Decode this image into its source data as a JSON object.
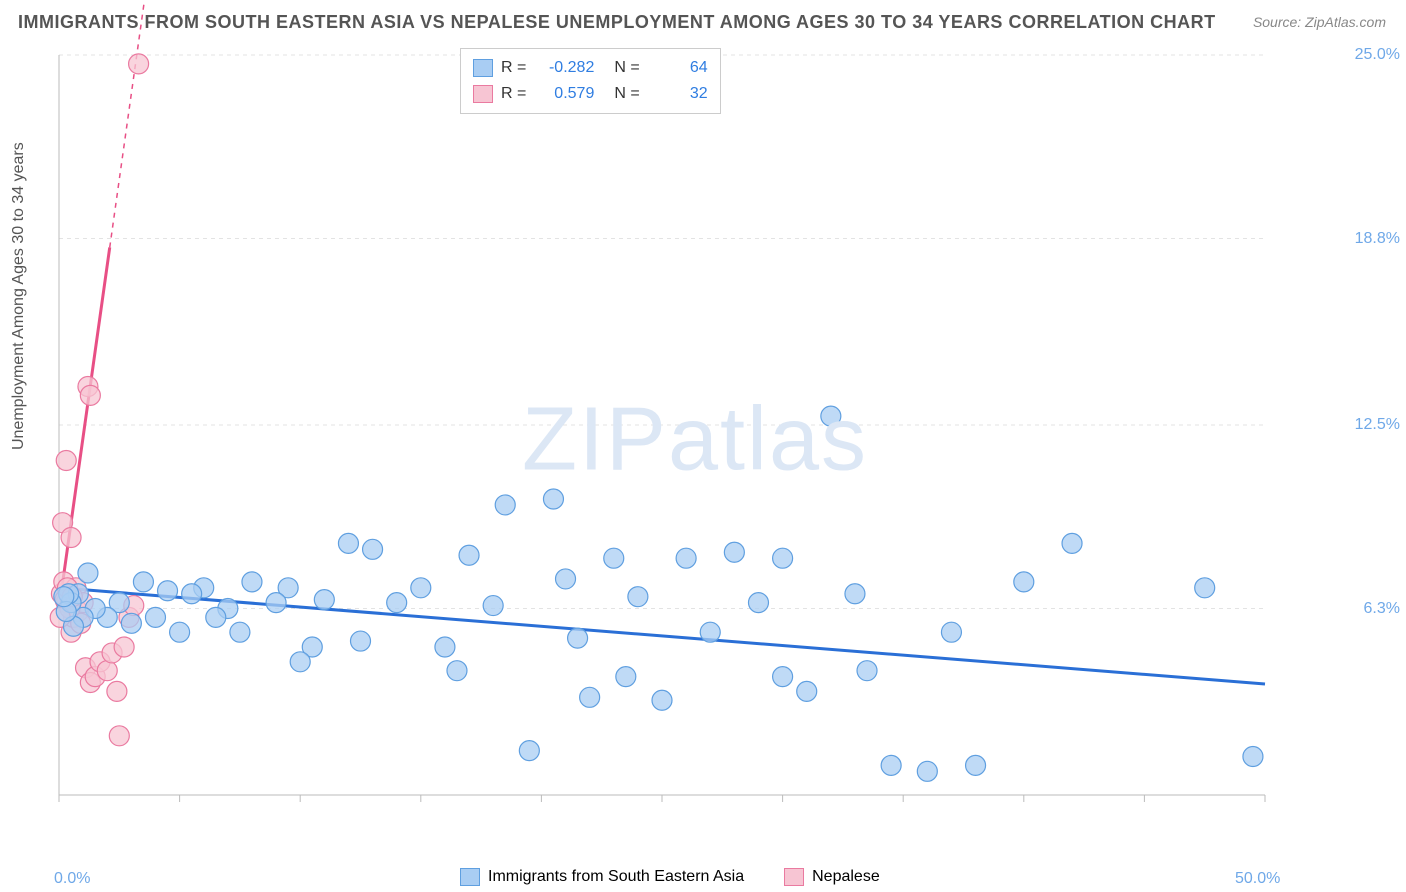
{
  "title": "IMMIGRANTS FROM SOUTH EASTERN ASIA VS NEPALESE UNEMPLOYMENT AMONG AGES 30 TO 34 YEARS CORRELATION CHART",
  "source": "Source: ZipAtlas.com",
  "ylabel": "Unemployment Among Ages 30 to 34 years",
  "watermark_a": "ZIP",
  "watermark_b": "atlas",
  "chart": {
    "type": "scatter-correlation",
    "background_color": "#ffffff",
    "grid_color": "#e3e3e3",
    "axis_tick_color": "#cccccc",
    "x_domain": [
      0,
      50
    ],
    "y_domain": [
      0,
      25
    ],
    "x_tick_label_min": "0.0%",
    "x_tick_label_max": "50.0%",
    "x_minor_ticks": [
      0,
      5,
      10,
      15,
      20,
      25,
      30,
      35,
      40,
      45,
      50
    ],
    "y_ticks": [
      {
        "v": 6.3,
        "label": "6.3%"
      },
      {
        "v": 12.5,
        "label": "12.5%"
      },
      {
        "v": 18.8,
        "label": "18.8%"
      },
      {
        "v": 25.0,
        "label": "25.0%"
      }
    ],
    "series": [
      {
        "name": "Immigrants from South Eastern Asia",
        "color_fill": "#a9cdf3",
        "color_stroke": "#5f9fe0",
        "marker_opacity": 0.75,
        "marker_radius": 10,
        "trend": {
          "slope": -0.065,
          "intercept": 7.0,
          "color": "#2a6fd6",
          "width": 3,
          "dash": "none"
        },
        "R": "-0.282",
        "N": "64",
        "points": [
          [
            49.5,
            1.3
          ],
          [
            47.5,
            7.0
          ],
          [
            42.0,
            8.5
          ],
          [
            40.0,
            7.2
          ],
          [
            38.0,
            1.0
          ],
          [
            37.0,
            5.5
          ],
          [
            36.0,
            0.8
          ],
          [
            34.5,
            1.0
          ],
          [
            33.5,
            4.2
          ],
          [
            33.0,
            6.8
          ],
          [
            32.0,
            12.8
          ],
          [
            31.0,
            3.5
          ],
          [
            30.0,
            8.0
          ],
          [
            30.0,
            4.0
          ],
          [
            29.0,
            6.5
          ],
          [
            28.0,
            8.2
          ],
          [
            27.0,
            5.5
          ],
          [
            26.0,
            8.0
          ],
          [
            25.0,
            3.2
          ],
          [
            24.0,
            6.7
          ],
          [
            23.5,
            4.0
          ],
          [
            23.0,
            8.0
          ],
          [
            22.0,
            3.3
          ],
          [
            21.5,
            5.3
          ],
          [
            21.0,
            7.3
          ],
          [
            20.5,
            10.0
          ],
          [
            19.5,
            1.5
          ],
          [
            18.5,
            9.8
          ],
          [
            18.0,
            6.4
          ],
          [
            17.0,
            8.1
          ],
          [
            16.5,
            4.2
          ],
          [
            16.0,
            5.0
          ],
          [
            15.0,
            7.0
          ],
          [
            14.0,
            6.5
          ],
          [
            13.0,
            8.3
          ],
          [
            12.5,
            5.2
          ],
          [
            12.0,
            8.5
          ],
          [
            11.0,
            6.6
          ],
          [
            10.5,
            5.0
          ],
          [
            10.0,
            4.5
          ],
          [
            9.5,
            7.0
          ],
          [
            9.0,
            6.5
          ],
          [
            8.0,
            7.2
          ],
          [
            7.5,
            5.5
          ],
          [
            7.0,
            6.3
          ],
          [
            6.5,
            6.0
          ],
          [
            6.0,
            7.0
          ],
          [
            5.5,
            6.8
          ],
          [
            5.0,
            5.5
          ],
          [
            4.5,
            6.9
          ],
          [
            4.0,
            6.0
          ],
          [
            3.5,
            7.2
          ],
          [
            3.0,
            5.8
          ],
          [
            2.5,
            6.5
          ],
          [
            2.0,
            6.0
          ],
          [
            1.5,
            6.3
          ],
          [
            1.2,
            7.5
          ],
          [
            1.0,
            6.0
          ],
          [
            0.8,
            6.8
          ],
          [
            0.6,
            5.7
          ],
          [
            0.5,
            6.5
          ],
          [
            0.4,
            6.8
          ],
          [
            0.3,
            6.2
          ],
          [
            0.2,
            6.7
          ]
        ]
      },
      {
        "name": "Nepalese",
        "color_fill": "#f7c5d3",
        "color_stroke": "#ea7aa0",
        "marker_opacity": 0.75,
        "marker_radius": 10,
        "trend": {
          "slope": 5.8,
          "intercept": 6.3,
          "color": "#e84f85",
          "width": 3,
          "dash_after_y": 18.5
        },
        "R": "0.579",
        "N": "32",
        "points": [
          [
            3.3,
            24.7
          ],
          [
            0.3,
            11.3
          ],
          [
            1.2,
            13.8
          ],
          [
            1.3,
            13.5
          ],
          [
            2.5,
            2.0
          ],
          [
            0.15,
            9.2
          ],
          [
            0.5,
            8.7
          ],
          [
            0.1,
            6.8
          ],
          [
            0.2,
            7.2
          ],
          [
            0.3,
            6.5
          ],
          [
            0.4,
            6.8
          ],
          [
            0.5,
            5.5
          ],
          [
            0.6,
            6.0
          ],
          [
            0.7,
            7.0
          ],
          [
            0.8,
            6.2
          ],
          [
            0.9,
            5.8
          ],
          [
            1.0,
            6.5
          ],
          [
            1.1,
            4.3
          ],
          [
            1.3,
            3.8
          ],
          [
            1.5,
            4.0
          ],
          [
            1.7,
            4.5
          ],
          [
            2.0,
            4.2
          ],
          [
            2.2,
            4.8
          ],
          [
            2.4,
            3.5
          ],
          [
            2.7,
            5.0
          ],
          [
            2.9,
            6.0
          ],
          [
            3.1,
            6.4
          ],
          [
            0.25,
            6.6
          ],
          [
            0.35,
            7.0
          ],
          [
            0.45,
            6.3
          ],
          [
            0.55,
            6.7
          ],
          [
            0.05,
            6.0
          ]
        ]
      }
    ],
    "legend_top_R_label": "R =",
    "legend_top_N_label": "N ="
  },
  "colors": {
    "tick_label": "#6fa8e8",
    "title": "#555555",
    "watermark": "#dce7f5"
  }
}
